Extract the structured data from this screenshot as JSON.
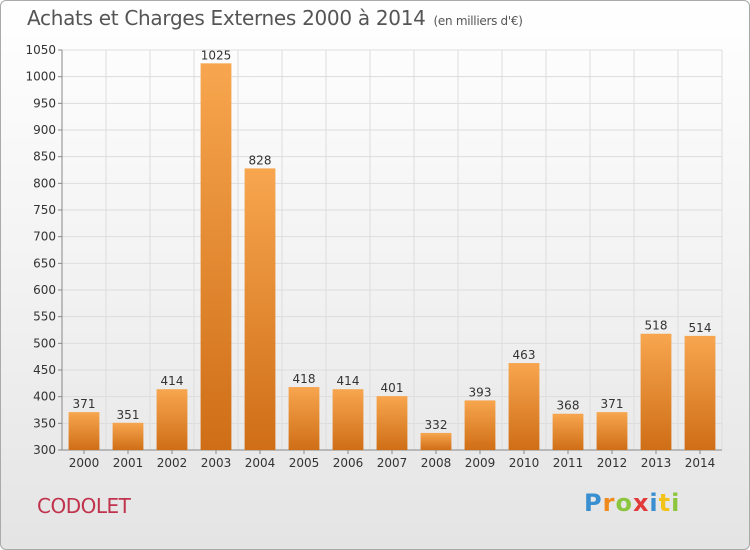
{
  "header": {
    "title": "Achats et Charges Externes 2000 à 2014",
    "unit": "(en milliers d'€)"
  },
  "footer": {
    "commune": "CODOLET",
    "brand": "Proxiti"
  },
  "colors": {
    "bar_top": "#f7a64f",
    "bar_bottom": "#cf6e17",
    "commune": "#c0334d",
    "grid": "#dddddd"
  },
  "chart_data": {
    "type": "bar",
    "title": "Achats et Charges Externes 2000 à 2014",
    "subtitle": "(en milliers d'€)",
    "xlabel": "",
    "ylabel": "",
    "categories": [
      "2000",
      "2001",
      "2002",
      "2003",
      "2004",
      "2005",
      "2006",
      "2007",
      "2008",
      "2009",
      "2010",
      "2011",
      "2012",
      "2013",
      "2014"
    ],
    "values": [
      371,
      351,
      414,
      1025,
      828,
      418,
      414,
      401,
      332,
      393,
      463,
      368,
      371,
      518,
      514
    ],
    "ylim": [
      300,
      1050
    ],
    "yticks": [
      300,
      350,
      400,
      450,
      500,
      550,
      600,
      650,
      700,
      750,
      800,
      850,
      900,
      950,
      1000,
      1050
    ],
    "grid": true,
    "legend": "none"
  }
}
